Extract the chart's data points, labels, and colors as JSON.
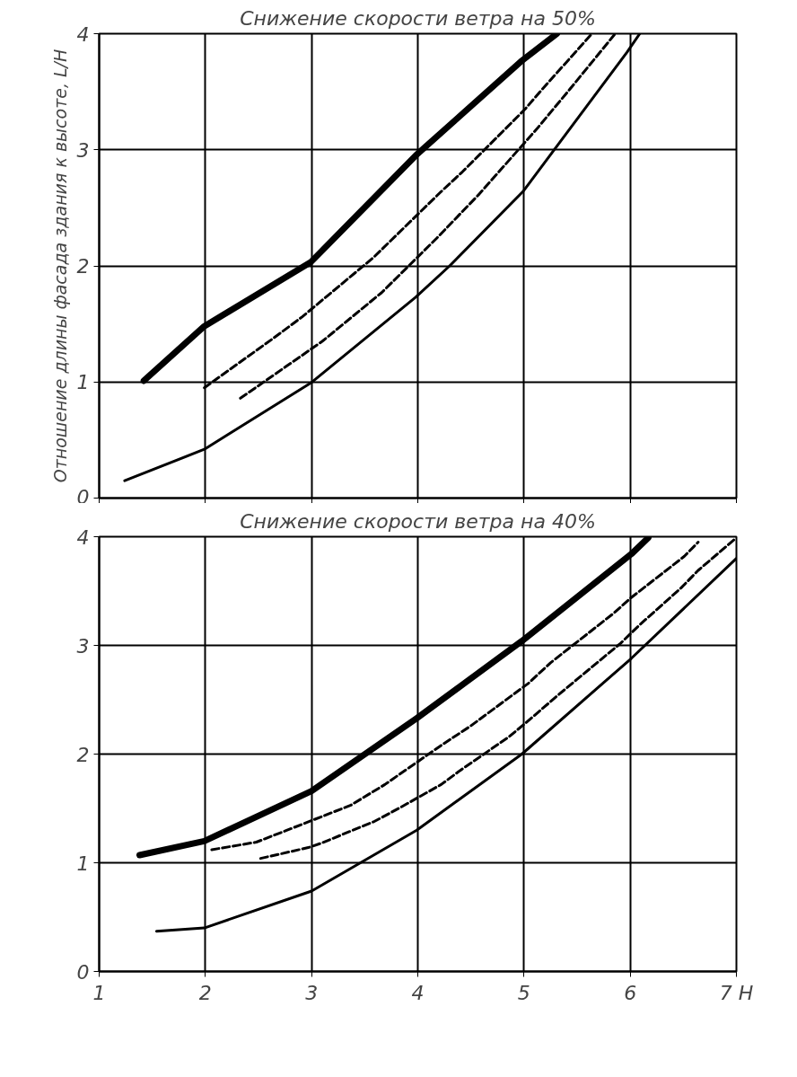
{
  "chart_data": [
    {
      "type": "line",
      "title": "Снижение скорости ветра на 50%",
      "ylabel": "Отношение длины фасада здания к высоте, L/H",
      "xlim": [
        1,
        7
      ],
      "ylim": [
        0,
        4
      ],
      "xticks": [
        1,
        2,
        3,
        4,
        5,
        6,
        7
      ],
      "yticks": [
        0,
        1,
        2,
        3,
        4
      ],
      "tick_labels": "y",
      "grid": true,
      "marker": "none",
      "series": [
        {
          "color": "#000000",
          "line_style": "solid",
          "x": [
            1.42,
            1.99,
            2.99,
            3.98,
            4.97,
            5.31
          ],
          "values": [
            1.01,
            1.48,
            2.03,
            2.95,
            3.76,
            4.0
          ]
        },
        {
          "color": "#000000",
          "line_style": "dashed",
          "x": [
            1.99,
            2.63,
            2.91,
            3.58,
            4.22,
            4.42,
            5.01,
            5.17,
            5.63
          ],
          "values": [
            0.95,
            1.37,
            1.56,
            2.07,
            2.64,
            2.81,
            3.35,
            3.52,
            3.99
          ]
        },
        {
          "color": "#000000",
          "line_style": "dashed",
          "x": [
            2.33,
            3.1,
            3.66,
            4.18,
            4.58,
            5.13,
            5.43,
            5.85
          ],
          "values": [
            0.86,
            1.35,
            1.77,
            2.24,
            2.62,
            3.19,
            3.52,
            3.99
          ]
        },
        {
          "color": "#000000",
          "line_style": "solid",
          "x": [
            1.24,
            1.99,
            2.99,
            3.98,
            4.3,
            4.99,
            5.97,
            6.09
          ],
          "values": [
            0.15,
            0.42,
            0.99,
            1.73,
            2.0,
            2.64,
            3.84,
            4.0
          ]
        }
      ]
    },
    {
      "type": "line",
      "title": "Снижение скорости ветра на 40%",
      "xlim": [
        1,
        7
      ],
      "ylim": [
        0,
        4
      ],
      "xticks": [
        1,
        2,
        3,
        4,
        5,
        6,
        {
          "value": 7,
          "label": "7 H"
        }
      ],
      "yticks": [
        0,
        1,
        2,
        3,
        4
      ],
      "grid": true,
      "marker": "none",
      "series": [
        {
          "color": "#000000",
          "line_style": "solid",
          "x": [
            1.38,
            1.99,
            3.0,
            3.99,
            4.98,
            6.01,
            6.17
          ],
          "values": [
            1.07,
            1.2,
            1.66,
            2.33,
            3.04,
            3.84,
            3.99
          ]
        },
        {
          "color": "#000000",
          "line_style": "dashed",
          "x": [
            2.06,
            2.48,
            2.77,
            3.37,
            3.69,
            4.22,
            4.5,
            5.04,
            5.25,
            5.85,
            6.01,
            6.51,
            6.64
          ],
          "values": [
            1.12,
            1.19,
            1.3,
            1.53,
            1.72,
            2.08,
            2.26,
            2.65,
            2.84,
            3.3,
            3.44,
            3.82,
            3.95
          ]
        },
        {
          "color": "#000000",
          "line_style": "dashed",
          "x": [
            2.52,
            2.97,
            3.09,
            3.59,
            3.82,
            4.22,
            4.4,
            4.86,
            5.02,
            5.33,
            5.49,
            5.91,
            6.09,
            6.48,
            6.64,
            7.0
          ],
          "values": [
            1.04,
            1.14,
            1.18,
            1.38,
            1.5,
            1.72,
            1.85,
            2.16,
            2.29,
            2.55,
            2.68,
            3.02,
            3.19,
            3.53,
            3.69,
            3.99
          ]
        },
        {
          "color": "#000000",
          "line_style": "solid",
          "x": [
            1.54,
            1.99,
            3.0,
            3.99,
            4.98,
            6.01,
            7.0
          ],
          "values": [
            0.37,
            0.4,
            0.74,
            1.3,
            2.0,
            2.88,
            3.8
          ]
        }
      ]
    }
  ]
}
